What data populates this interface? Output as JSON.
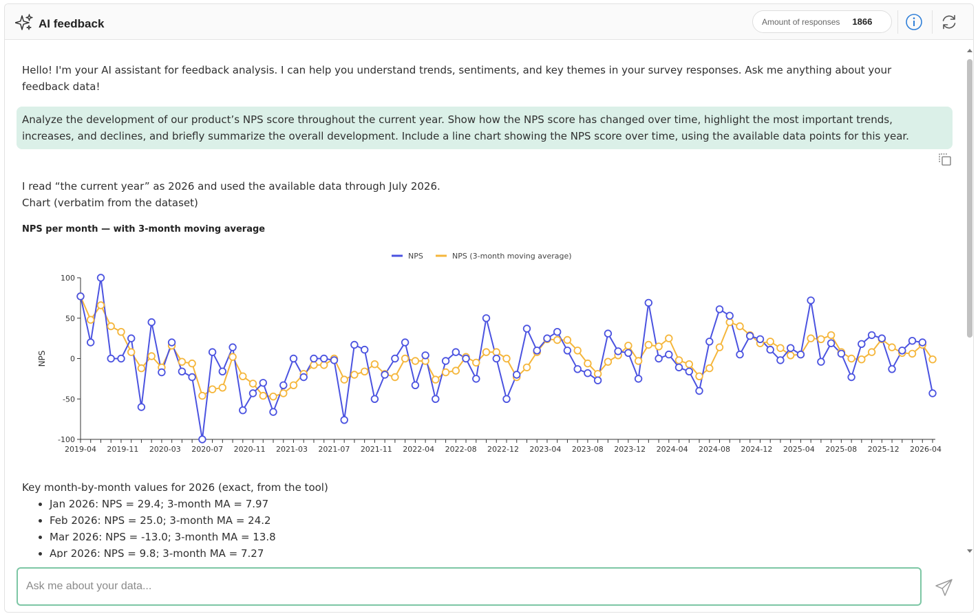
{
  "header": {
    "title": "AI feedback",
    "responses_label": "Amount of responses",
    "responses_count": "1866"
  },
  "messages": {
    "greeting": "Hello! I'm your AI assistant for feedback analysis. I can help you understand trends, sentiments, and key themes in your survey responses. Ask me anything about your feedback data!",
    "user_prompt": "Analyze the development of our product’s NPS score throughout the current year. Show how the NPS score has changed over time, highlight the most important trends, increases, and declines, and briefly summarize the overall development. Include a line chart showing the NPS score over time, using the available data points for this year.",
    "answer_line1": "I read “the current year” as 2026 and used the available data through July 2026.",
    "answer_line2": "Chart (verbatim from the dataset)",
    "values_intro": "Key month-by-month values for 2026 (exact, from the tool)",
    "bullets": [
      "Jan 2026: NPS = 29.4; 3-month MA = 7.97",
      "Feb 2026: NPS = 25.0; 3-month MA = 24.2",
      "Mar 2026: NPS = -13.0; 3-month MA = 13.8",
      "Apr 2026: NPS = 9.8; 3-month MA = 7.27"
    ]
  },
  "input": {
    "placeholder": "Ask me about your data..."
  },
  "colors": {
    "nps": "#4a52e0",
    "ma": "#f5b63b",
    "user_bubble": "#dbf0e8",
    "input_border": "#7cc6a4"
  },
  "icons": {
    "title": "sparkles-icon",
    "info": "info-icon",
    "refresh": "refresh-icon",
    "copy": "copy-icon",
    "send": "send-icon"
  },
  "chart_data": {
    "type": "line",
    "title": "NPS per month — with 3-month moving average",
    "ylabel": "NPS",
    "xlabel": "",
    "ylim": [
      -100,
      100
    ],
    "yticks": [
      100,
      50,
      0,
      -50,
      -100
    ],
    "legend_position": "top-center",
    "x_tick_labels": [
      "2019-04",
      "2019-11",
      "2020-03",
      "2020-07",
      "2020-11",
      "2021-03",
      "2021-07",
      "2021-11",
      "2022-04",
      "2022-08",
      "2022-12",
      "2023-04",
      "2023-08",
      "2023-12",
      "2024-04",
      "2024-08",
      "2024-12",
      "2025-04",
      "2025-08",
      "2025-12",
      "2026-04"
    ],
    "series": [
      {
        "name": "NPS",
        "color": "#4a52e0",
        "values": [
          77,
          20,
          100,
          0,
          0,
          25,
          -60,
          45,
          -17,
          20,
          -16,
          -23,
          -100,
          8,
          -16,
          14,
          -64,
          -43,
          -30,
          -66,
          -33,
          0,
          -23,
          0,
          0,
          -2,
          -76,
          17,
          11,
          -50,
          -20,
          0,
          20,
          -33,
          4,
          -50,
          -3,
          8,
          0,
          -25,
          50,
          0,
          -50,
          -20,
          37,
          10,
          25,
          33,
          10,
          -13,
          -18,
          -27,
          31,
          9,
          7,
          -25,
          69,
          0,
          5,
          -11,
          -16,
          -40,
          21,
          61,
          53,
          5,
          28,
          24,
          11,
          -2,
          13,
          5,
          72,
          -4,
          19,
          6,
          -23,
          18,
          29,
          25,
          -13,
          10,
          22,
          20,
          -43
        ]
      },
      {
        "name": "NPS (3-month moving average)",
        "color": "#f5b63b",
        "values": [
          77,
          48,
          66,
          40,
          33,
          8,
          -12,
          3,
          -11,
          16,
          -4,
          -6,
          -46,
          -38,
          -36,
          2,
          -22,
          -31,
          -46,
          -47,
          -43,
          -33,
          -19,
          -8,
          -8,
          0,
          -26,
          -20,
          -16,
          -7,
          -19,
          -23,
          0,
          -3,
          -3,
          -26,
          -17,
          -15,
          2,
          -5,
          8,
          8,
          0,
          -23,
          -11,
          8,
          24,
          23,
          23,
          10,
          -6,
          -19,
          -4,
          4,
          16,
          -3,
          17,
          15,
          25,
          -2,
          -7,
          -22,
          -12,
          14,
          45,
          40,
          29,
          19,
          21,
          13,
          4,
          5,
          25,
          24,
          29,
          8,
          0,
          -1,
          8,
          24,
          14,
          7,
          6,
          17,
          -1
        ]
      }
    ]
  }
}
